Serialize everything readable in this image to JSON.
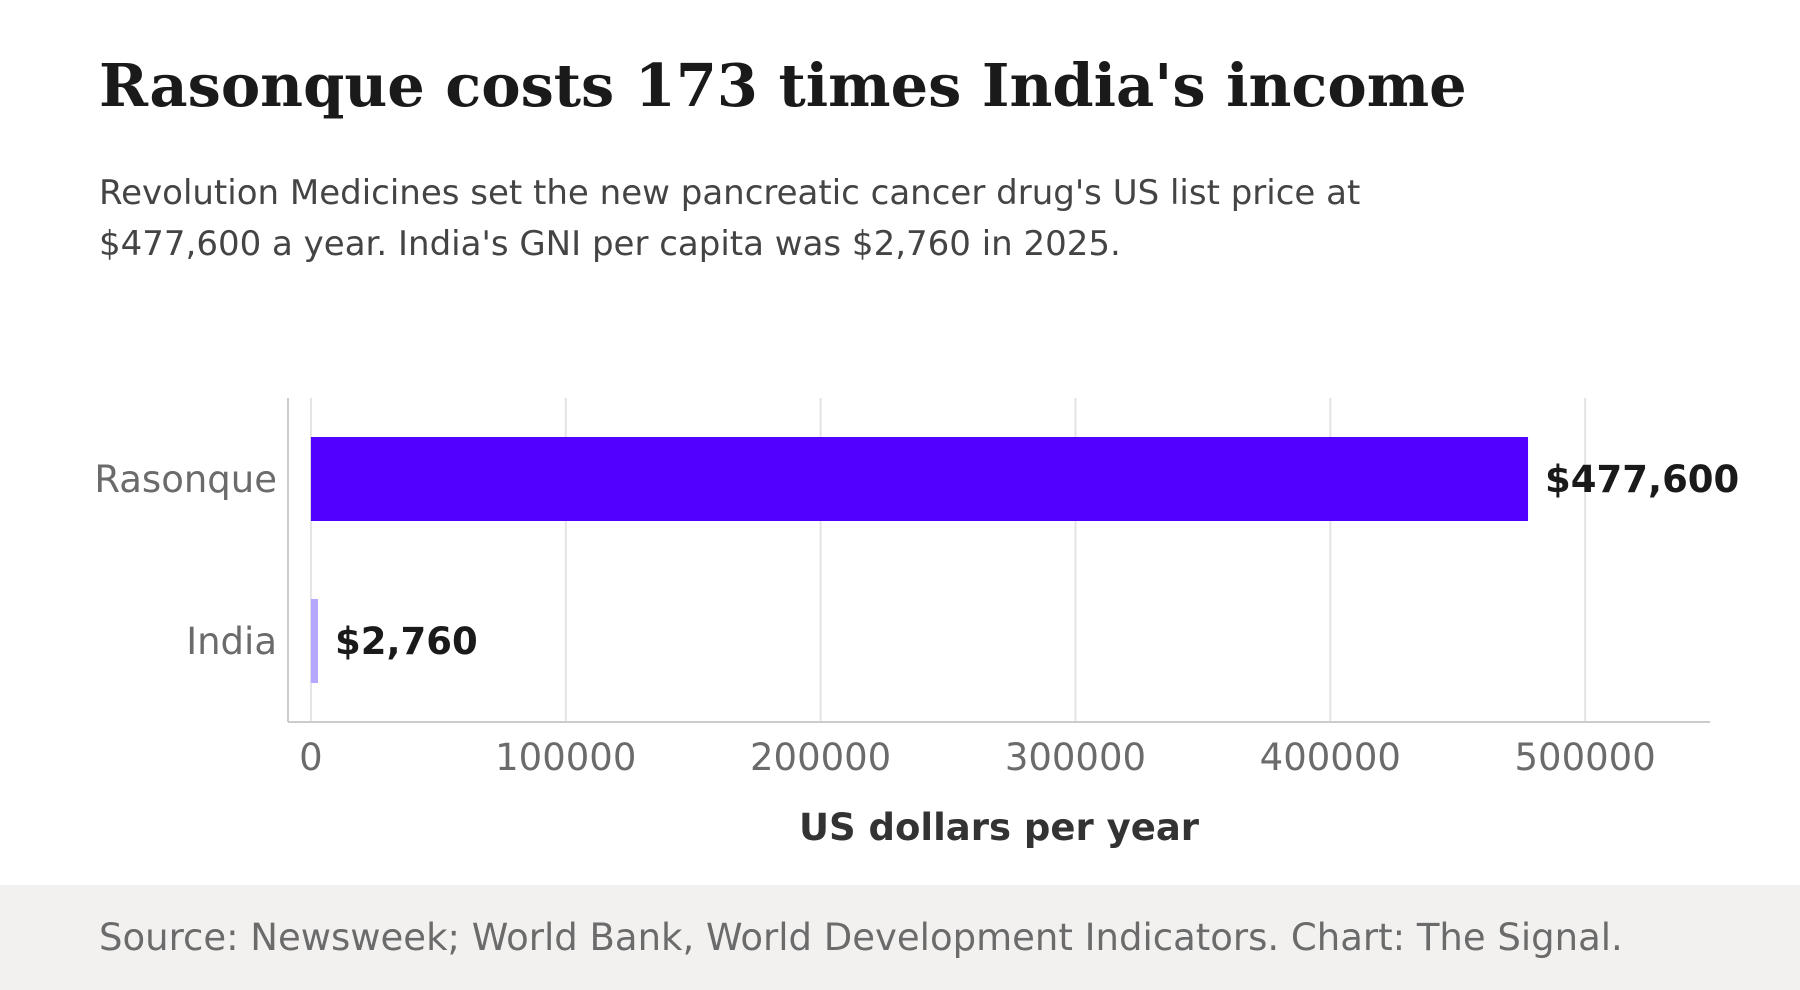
{
  "title": "Rasonque costs 173 times India's income",
  "subtitle": "Revolution Medicines set the new pancreatic cancer drug's US list price at $477,600 a year. India's GNI per capita was $2,760 in 2025.",
  "source": "Source: Newsweek; World Bank, World Development Indicators. Chart: The Signal.",
  "chart_data": {
    "type": "bar",
    "orientation": "horizontal",
    "categories": [
      "Rasonque",
      "India"
    ],
    "values": [
      477600,
      2760
    ],
    "value_labels": [
      "$477,600",
      "$2,760"
    ],
    "colors": [
      "#5200ff",
      "#b5a6ff"
    ],
    "xlabel": "US dollars per year",
    "ylabel": "",
    "xlim": [
      -9000,
      549000
    ],
    "xticks": [
      0,
      100000,
      200000,
      300000,
      400000,
      500000
    ],
    "xtick_labels": [
      "0",
      "100000",
      "200000",
      "300000",
      "400000",
      "500000"
    ],
    "grid": "vertical"
  }
}
